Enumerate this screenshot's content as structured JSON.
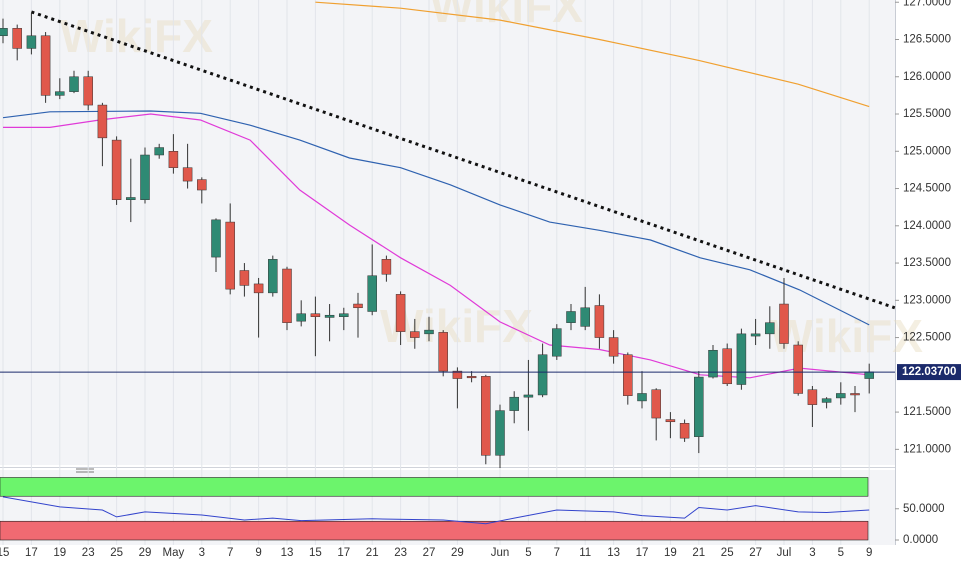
{
  "chart_data": {
    "type": "candlestick",
    "categories": [
      "15",
      null,
      "17",
      null,
      "19",
      null,
      "23",
      null,
      "25",
      null,
      "29",
      null,
      "May",
      null,
      "3",
      null,
      "7",
      null,
      "9",
      null,
      "13",
      null,
      "15",
      null,
      "17",
      null,
      "21",
      null,
      "23",
      null,
      "27",
      null,
      "29",
      null,
      null,
      "Jun",
      null,
      "5",
      null,
      "7",
      null,
      "11",
      null,
      "13",
      null,
      "17",
      null,
      "19",
      null,
      "21",
      null,
      "25",
      null,
      "27",
      null,
      "Jul",
      null,
      "3",
      null,
      "5",
      null,
      "9"
    ],
    "open": [
      126.55,
      126.65,
      126.38,
      126.55,
      125.75,
      125.8,
      126.0,
      125.62,
      125.15,
      124.35,
      124.35,
      124.95,
      125.0,
      124.78,
      124.62,
      123.58,
      124.05,
      123.4,
      123.22,
      123.1,
      123.42,
      122.72,
      122.82,
      122.77,
      122.78,
      122.95,
      122.85,
      123.55,
      123.08,
      122.58,
      122.55,
      122.57,
      122.05,
      121.98,
      121.98,
      120.92,
      121.52,
      121.7,
      121.73,
      122.25,
      122.7,
      122.65,
      122.93,
      122.5,
      122.27,
      121.65,
      121.8,
      121.4,
      121.35,
      121.17,
      121.97,
      122.35,
      121.87,
      122.52,
      122.55,
      122.95,
      122.4,
      121.8,
      121.63,
      121.69,
      121.75,
      121.95
    ],
    "high": [
      126.78,
      126.7,
      126.85,
      126.6,
      125.98,
      126.08,
      126.08,
      125.65,
      125.2,
      124.9,
      125.05,
      125.1,
      125.23,
      125.1,
      124.65,
      124.1,
      124.3,
      123.5,
      123.3,
      123.6,
      123.45,
      123.0,
      123.05,
      122.95,
      122.9,
      123.1,
      123.75,
      123.6,
      123.12,
      122.75,
      122.78,
      122.6,
      122.1,
      122.05,
      122.0,
      121.6,
      121.78,
      122.2,
      122.42,
      122.68,
      122.95,
      123.18,
      123.08,
      122.6,
      122.3,
      122.05,
      121.82,
      121.5,
      121.4,
      122.05,
      122.4,
      122.42,
      122.62,
      122.75,
      122.92,
      123.3,
      122.45,
      121.85,
      121.7,
      121.9,
      121.85,
      122.15
    ],
    "low": [
      126.45,
      126.22,
      126.3,
      125.65,
      125.7,
      125.78,
      125.55,
      124.8,
      124.28,
      124.05,
      124.3,
      124.9,
      124.7,
      124.5,
      124.3,
      123.38,
      123.08,
      123.05,
      122.5,
      123.05,
      122.6,
      122.65,
      122.25,
      122.45,
      122.6,
      122.5,
      122.8,
      123.25,
      122.4,
      122.35,
      122.45,
      121.98,
      121.55,
      121.9,
      120.8,
      120.75,
      121.35,
      121.25,
      121.7,
      122.2,
      122.6,
      122.6,
      122.35,
      122.15,
      121.6,
      121.55,
      121.12,
      121.15,
      121.1,
      120.95,
      121.95,
      121.85,
      121.8,
      122.4,
      122.35,
      122.35,
      121.72,
      121.3,
      121.55,
      121.6,
      121.5,
      121.75
    ],
    "close": [
      126.65,
      126.38,
      126.55,
      125.75,
      125.8,
      126.0,
      125.62,
      125.18,
      124.35,
      124.38,
      124.95,
      125.05,
      124.78,
      124.6,
      124.48,
      124.08,
      123.15,
      123.2,
      123.1,
      123.55,
      122.7,
      122.82,
      122.78,
      122.8,
      122.82,
      122.9,
      123.33,
      123.35,
      122.58,
      122.5,
      122.6,
      122.05,
      121.95,
      121.96,
      120.92,
      121.52,
      121.7,
      121.73,
      122.27,
      122.62,
      122.85,
      122.9,
      122.5,
      122.25,
      121.72,
      121.75,
      121.42,
      121.37,
      121.15,
      121.97,
      122.33,
      121.88,
      122.55,
      122.55,
      122.7,
      122.42,
      121.75,
      121.6,
      121.68,
      121.75,
      121.74,
      122.04
    ],
    "up_color": "#2f8a74",
    "down_color": "#e0584b",
    "ylim": [
      120.79,
      127.03
    ],
    "yticks": [
      {
        "value": 127,
        "label": "127.0000"
      },
      {
        "value": 126.5,
        "label": "126.5000"
      },
      {
        "value": 126,
        "label": "126.0000"
      },
      {
        "value": 125.5,
        "label": "125.5000"
      },
      {
        "value": 125,
        "label": "125.0000"
      },
      {
        "value": 124.5,
        "label": "124.5000"
      },
      {
        "value": 124,
        "label": "124.0000"
      },
      {
        "value": 123.5,
        "label": "123.5000"
      },
      {
        "value": 123,
        "label": "123.0000"
      },
      {
        "value": 122.5,
        "label": "122.5000"
      },
      {
        "value": 121.5,
        "label": "121.5000"
      },
      {
        "value": 121,
        "label": "121.0000"
      }
    ],
    "grid": true,
    "last_price": {
      "value": 122.037,
      "label": "122.03700",
      "color": "#1b2a6b"
    },
    "overlays": [
      {
        "color": "#f0a030",
        "style": "solid",
        "x": [
          22,
          28,
          35,
          42,
          49,
          56,
          61
        ],
        "values": [
          127.0,
          126.92,
          126.76,
          126.5,
          126.22,
          125.9,
          125.6
        ]
      },
      {
        "color": "#2f62b0",
        "style": "solid",
        "x": [
          0,
          3.3,
          10.4,
          13.9,
          17.4,
          20.9,
          24.4,
          28,
          31.5,
          35,
          38.5,
          42,
          45.6,
          49.1,
          52.6,
          56.1,
          61
        ],
        "values": [
          125.45,
          125.53,
          125.54,
          125.51,
          125.35,
          125.15,
          124.91,
          124.78,
          124.55,
          124.28,
          124.05,
          123.94,
          123.81,
          123.57,
          123.41,
          123.14,
          122.67
        ]
      },
      {
        "color": "#e03ad8",
        "style": "solid",
        "x": [
          0,
          3.3,
          6.8,
          10.4,
          13.9,
          17.4,
          20.9,
          24.4,
          28,
          31.5,
          35,
          38.5,
          42,
          45.6,
          49.1,
          52.6,
          56.1,
          61
        ],
        "values": [
          125.32,
          125.32,
          125.42,
          125.5,
          125.42,
          125.15,
          124.48,
          124.01,
          123.57,
          123.2,
          122.71,
          122.4,
          122.34,
          122.2,
          122.0,
          121.96,
          122.09,
          122.0
        ]
      },
      {
        "color": "#111111",
        "style": "dotted",
        "x": [
          2,
          62.8
        ],
        "values": [
          126.87,
          122.9
        ]
      }
    ],
    "watermark": "WikiFX",
    "rsi": {
      "ylim": [
        0,
        112
      ],
      "yticks": [
        {
          "value": 50,
          "label": "50.0000"
        },
        {
          "value": 0,
          "label": "0.0000"
        }
      ],
      "bands": [
        {
          "color": "#6cf46c",
          "range": [
            70,
            100
          ]
        },
        {
          "color": "#f06a72",
          "range": [
            0,
            30
          ]
        }
      ],
      "color": "#3344cc",
      "x": [
        0,
        4,
        7,
        8,
        10,
        14,
        17,
        19,
        21,
        26,
        31,
        34,
        36,
        39,
        43,
        45,
        48,
        49,
        51,
        53,
        56,
        58,
        61
      ],
      "values": [
        69,
        53,
        48,
        37,
        45,
        40,
        32,
        35,
        31,
        34,
        32,
        26,
        35,
        48,
        45,
        39,
        35,
        52,
        48,
        55,
        45,
        44,
        48
      ]
    }
  }
}
